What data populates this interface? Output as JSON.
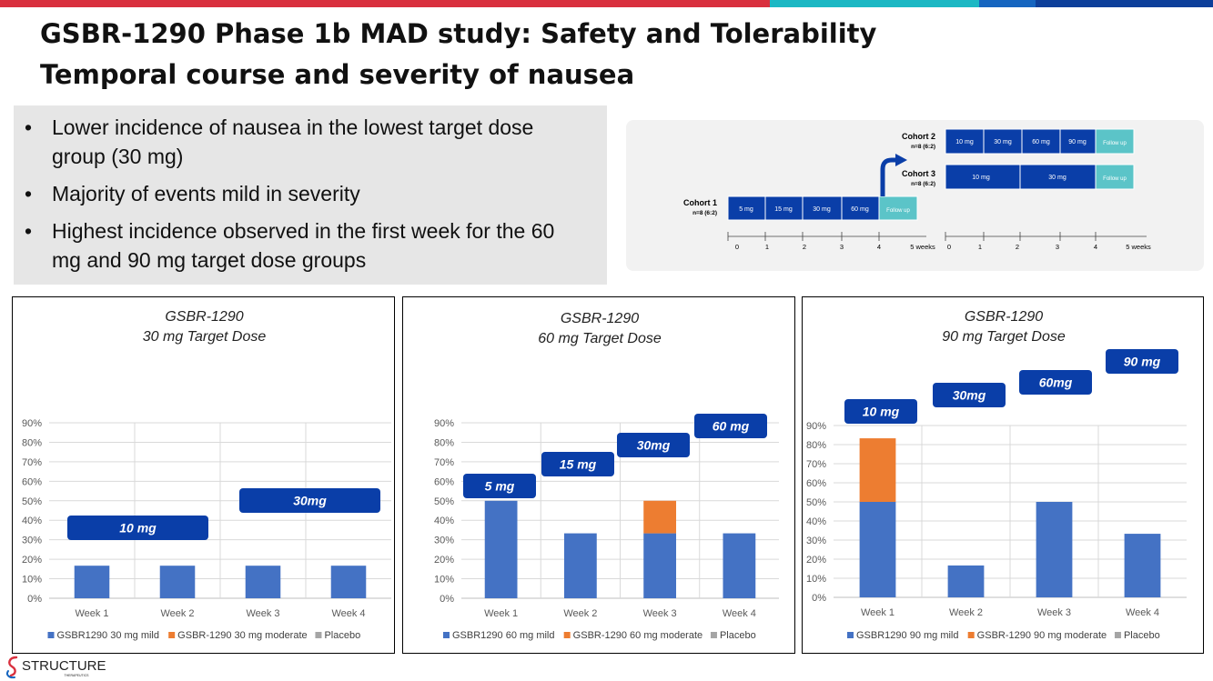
{
  "colors": {
    "mild": "#4472c4",
    "moderate": "#ed7d31",
    "placebo": "#a5a5a5",
    "callout": "#0a3ea8",
    "cohort_box": "#0a3ea8",
    "follow_box": "#5bc4c8",
    "bar_red": "#d9303e",
    "bar_teal": "#1cb8c4",
    "bar_blue": "#1565c0",
    "bar_navy": "#0d3f9a"
  },
  "header": {
    "title_line1": "GSBR-1290 Phase 1b MAD study: Safety and Tolerability",
    "title_line2": "Temporal course and severity of nausea"
  },
  "bullets": [
    "Lower incidence of nausea in the lowest target dose group (30 mg)",
    "Majority of events mild in severity",
    "Highest incidence observed in the first week for the 60 mg and 90 mg target dose groups"
  ],
  "schema": {
    "cohort1": {
      "label": "Cohort 1",
      "n": "n=8 (6:2)",
      "doses": [
        "5 mg",
        "15 mg",
        "30 mg",
        "60 mg"
      ],
      "follow": "Follow up"
    },
    "cohort2": {
      "label": "Cohort 2",
      "n": "n=8 (6:2)",
      "doses": [
        "10 mg",
        "30 mg",
        "60 mg",
        "90 mg"
      ],
      "follow": "Follow up"
    },
    "cohort3": {
      "label": "Cohort 3",
      "n": "n=8 (6:2)",
      "doses": [
        "10 mg",
        "30 mg"
      ],
      "follow": "Follow up"
    },
    "axis1_ticks": [
      "0",
      "1",
      "2",
      "3",
      "4",
      "5 weeks"
    ],
    "axis2_ticks": [
      "0",
      "1",
      "2",
      "3",
      "4",
      "5 weeks"
    ]
  },
  "chart_data": [
    {
      "type": "bar",
      "stacked": true,
      "title": "GSBR-1290",
      "subtitle": "30 mg Target Dose",
      "categories": [
        "Week 1",
        "Week 2",
        "Week 3",
        "Week 4"
      ],
      "series": [
        {
          "name": "GSBR1290 30 mg mild",
          "values": [
            16.7,
            16.7,
            16.7,
            16.7
          ]
        },
        {
          "name": "GSBR-1290 30 mg moderate",
          "values": [
            0,
            0,
            0,
            0
          ]
        },
        {
          "name": "Placebo",
          "values": [
            0,
            0,
            0,
            0
          ]
        }
      ],
      "y_ticks": [
        "0%",
        "10%",
        "20%",
        "30%",
        "40%",
        "50%",
        "60%",
        "70%",
        "80%",
        "90%"
      ],
      "ylim": [
        0,
        90
      ],
      "legend": "bottom",
      "annotations": [
        {
          "text": "10 mg",
          "weeks": "1-2"
        },
        {
          "text": "30mg",
          "weeks": "3-4"
        }
      ]
    },
    {
      "type": "bar",
      "stacked": true,
      "title": "GSBR-1290",
      "subtitle": "60 mg Target Dose",
      "categories": [
        "Week 1",
        "Week 2",
        "Week 3",
        "Week 4"
      ],
      "series": [
        {
          "name": "GSBR1290 60 mg mild",
          "values": [
            50,
            33.3,
            33.3,
            33.3
          ]
        },
        {
          "name": "GSBR-1290 60 mg moderate",
          "values": [
            0,
            0,
            16.7,
            0
          ]
        },
        {
          "name": "Placebo",
          "values": [
            0,
            0,
            0,
            0
          ]
        }
      ],
      "y_ticks": [
        "0%",
        "10%",
        "20%",
        "30%",
        "40%",
        "50%",
        "60%",
        "70%",
        "80%",
        "90%"
      ],
      "ylim": [
        0,
        90
      ],
      "legend": "bottom",
      "annotations": [
        {
          "text": "5 mg",
          "weeks": "1"
        },
        {
          "text": "15 mg",
          "weeks": "2"
        },
        {
          "text": "30mg",
          "weeks": "3"
        },
        {
          "text": "60 mg",
          "weeks": "4"
        }
      ]
    },
    {
      "type": "bar",
      "stacked": true,
      "title": "GSBR-1290",
      "subtitle": "90 mg Target Dose",
      "categories": [
        "Week 1",
        "Week 2",
        "Week 3",
        "Week 4"
      ],
      "series": [
        {
          "name": "GSBR1290 90 mg mild",
          "values": [
            50,
            16.7,
            50,
            33.3
          ]
        },
        {
          "name": "GSBR-1290 90 mg moderate",
          "values": [
            33.3,
            0,
            0,
            0
          ]
        },
        {
          "name": "Placebo",
          "values": [
            0,
            0,
            0,
            0
          ]
        }
      ],
      "y_ticks": [
        "0%",
        "10%",
        "20%",
        "30%",
        "40%",
        "50%",
        "60%",
        "70%",
        "80%",
        "90%"
      ],
      "ylim": [
        0,
        90
      ],
      "legend": "bottom",
      "annotations": [
        {
          "text": "10 mg",
          "weeks": "1"
        },
        {
          "text": "30mg",
          "weeks": "2"
        },
        {
          "text": "60mg",
          "weeks": "3"
        },
        {
          "text": "90 mg",
          "weeks": "4"
        }
      ]
    }
  ],
  "footer": {
    "logo_text": "STRUCTURE",
    "logo_subtext": "THERAPEUTICS"
  }
}
